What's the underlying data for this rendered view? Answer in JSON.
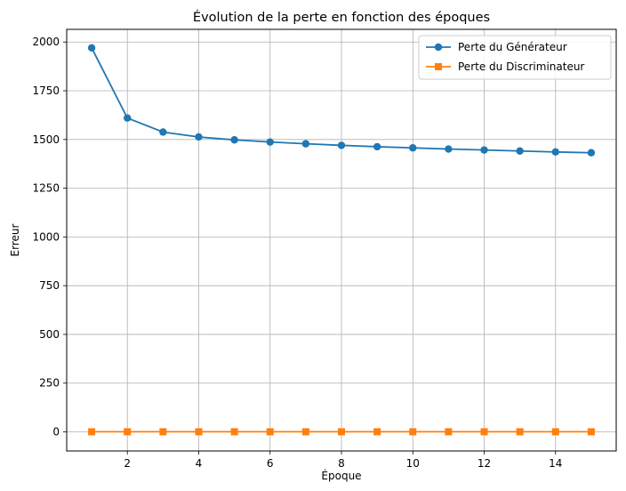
{
  "chart_data": {
    "type": "line",
    "title": "Évolution de la perte en fonction des époques",
    "xlabel": "Époque",
    "ylabel": "Erreur",
    "x": [
      1,
      2,
      3,
      4,
      5,
      6,
      7,
      8,
      9,
      10,
      11,
      12,
      13,
      14,
      15
    ],
    "xlim": [
      0.3,
      15.7
    ],
    "ylim": [
      -98,
      2065
    ],
    "xticks": [
      2,
      4,
      6,
      8,
      10,
      12,
      14
    ],
    "yticks": [
      0,
      250,
      500,
      750,
      1000,
      1250,
      1500,
      1750,
      2000
    ],
    "grid": true,
    "legend_position": "top-right",
    "series": [
      {
        "name": "Perte du Générateur",
        "color": "#1f77b4",
        "marker": "circle",
        "values": [
          1970,
          1610,
          1538,
          1513,
          1498,
          1487,
          1478,
          1470,
          1463,
          1457,
          1451,
          1446,
          1441,
          1436,
          1432
        ]
      },
      {
        "name": "Perte du Discriminateur",
        "color": "#ff7f0e",
        "marker": "square",
        "values": [
          0.5,
          0.5,
          0.5,
          0.5,
          0.5,
          0.5,
          0.5,
          0.5,
          0.5,
          0.5,
          0.5,
          0.5,
          0.5,
          0.5,
          0.5
        ]
      }
    ]
  }
}
